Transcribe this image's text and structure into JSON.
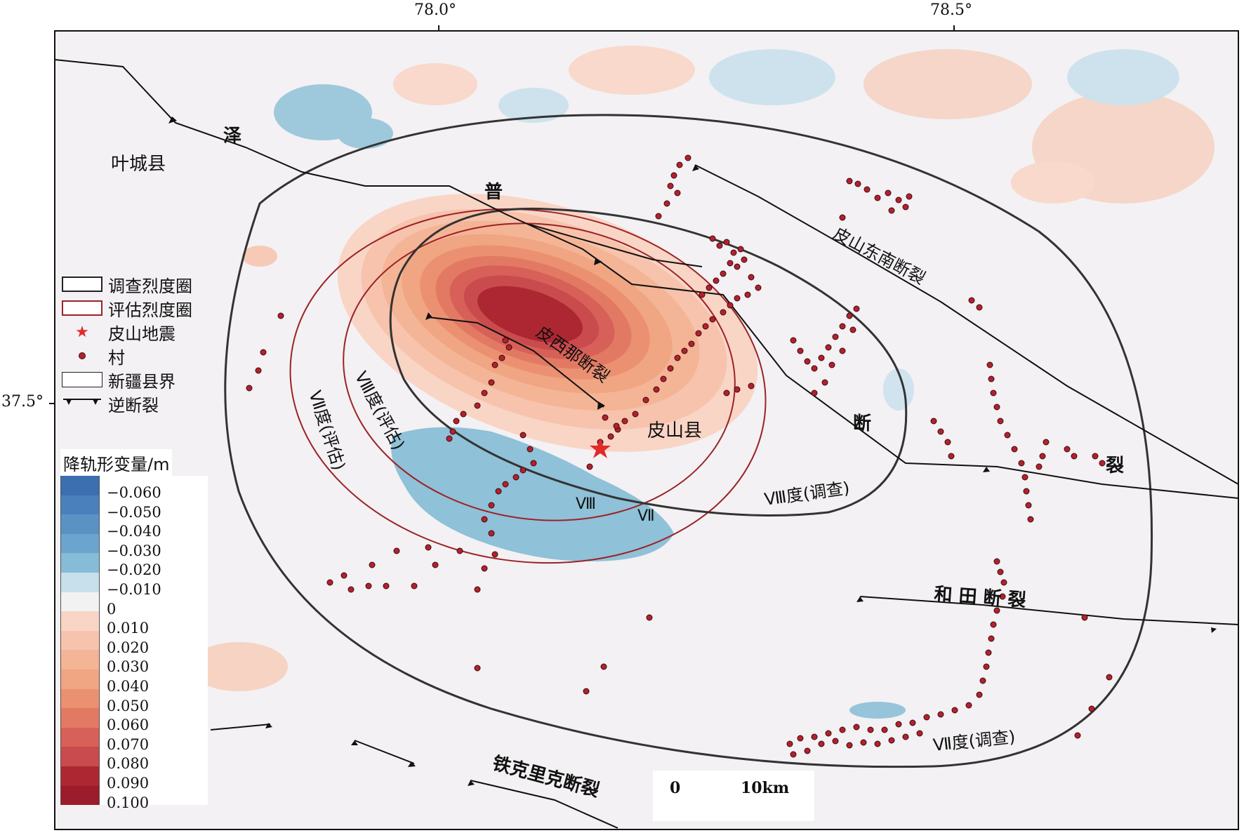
{
  "axes": {
    "lon_ticks": [
      "78.0°",
      "78.5°"
    ],
    "lat_ticks": [
      "37.5°"
    ]
  },
  "place_labels": {
    "yecheng": "叶城县",
    "pishan": "皮山县"
  },
  "fault_labels": {
    "ze": "泽",
    "pu": "普",
    "duan": "断",
    "lie": "裂",
    "pishan_se": "皮山东南断裂",
    "pixina": "皮西那断裂",
    "hetian": "和  田  断  裂",
    "tiekelike": "铁克里克断裂"
  },
  "intensity_labels": {
    "vii_assess": "Ⅶ度(评估)",
    "viii_assess": "Ⅷ度(评估)",
    "viii_survey": "Ⅷ度(调查)",
    "vii_survey": "Ⅶ度(调查)",
    "roman_viii": "Ⅷ",
    "roman_vii": "Ⅶ"
  },
  "legend": {
    "survey_circle": "调查烈度圈",
    "assess_circle": "评估烈度圈",
    "quake": "皮山地震",
    "village": "村",
    "county_border": "新疆县界",
    "thrust_fault": "逆断裂"
  },
  "colorbar": {
    "title": "降轨形变量/m",
    "entries": [
      {
        "label": "−0.060",
        "color": "#3b6fb0"
      },
      {
        "label": "−0.050",
        "color": "#4a80bb"
      },
      {
        "label": "−0.040",
        "color": "#5a92c4"
      },
      {
        "label": "−0.030",
        "color": "#6ba4cc"
      },
      {
        "label": "−0.020",
        "color": "#86bcd6"
      },
      {
        "label": "−0.010",
        "color": "#c7e0ec"
      },
      {
        "label": "0",
        "color": "#f2f2f2"
      },
      {
        "label": "0.010",
        "color": "#f9d5c6"
      },
      {
        "label": "0.020",
        "color": "#f7c3ad"
      },
      {
        "label": "0.030",
        "color": "#f4b597"
      },
      {
        "label": "0.040",
        "color": "#f0a583"
      },
      {
        "label": "0.050",
        "color": "#eb9172"
      },
      {
        "label": "0.060",
        "color": "#e27a63"
      },
      {
        "label": "0.070",
        "color": "#d76058"
      },
      {
        "label": "0.080",
        "color": "#c94b4d"
      },
      {
        "label": "0.090",
        "color": "#ad2732"
      },
      {
        "label": "0.100",
        "color": "#9b1c2a"
      }
    ]
  },
  "scalebar": {
    "start": "0",
    "end": "10km"
  },
  "colors": {
    "uplift_core": "#a51f2c",
    "subsidence": "#8fc1d8",
    "survey_line": "#333333",
    "assess_line": "#9b2226",
    "village_dot": "#b3212e",
    "star": "#e12a2a"
  }
}
